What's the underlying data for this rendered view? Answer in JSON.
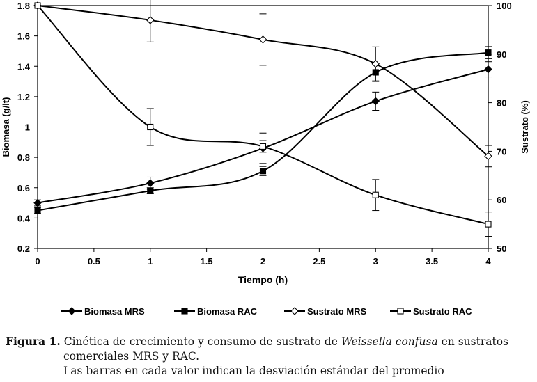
{
  "chart_data": {
    "type": "line",
    "title": "",
    "xlabel": "Tiempo (h)",
    "ylabel": "Biomasa (g/lt)",
    "y2label": "Sustrato (%)",
    "xlim": [
      0,
      4
    ],
    "ylim": [
      0.2,
      1.8
    ],
    "y2lim": [
      50,
      100
    ],
    "x_ticks": [
      "0",
      "0.5",
      "1",
      "1.5",
      "2",
      "2.5",
      "3",
      "3.5",
      "4"
    ],
    "y_ticks": [
      "0.2",
      "0.4",
      "0.6",
      "0.8",
      "1",
      "1.2",
      "1.4",
      "1.6",
      "1.8"
    ],
    "y2_ticks": [
      "50",
      "60",
      "70",
      "80",
      "90",
      "100"
    ],
    "grid": false,
    "legend_position": "bottom",
    "x": [
      0,
      1,
      2,
      3,
      4
    ],
    "series": [
      {
        "name": "Biomasa MRS",
        "axis": "left",
        "marker": "diamond-filled",
        "values": [
          0.5,
          0.63,
          0.86,
          1.17,
          1.38
        ],
        "errors": [
          0.02,
          0.04,
          0.1,
          0.06,
          0.05
        ]
      },
      {
        "name": "Biomasa RAC",
        "axis": "left",
        "marker": "square-filled",
        "values": [
          0.45,
          0.58,
          0.71,
          1.36,
          1.49
        ],
        "errors": [
          0.02,
          0.02,
          0.03,
          0.06,
          0.04
        ]
      },
      {
        "name": "Sustrato MRS",
        "axis": "right",
        "marker": "diamond-open",
        "values": [
          100,
          97,
          93,
          88,
          69
        ],
        "errors": [
          0,
          4.5,
          5.3,
          3.5,
          2.2
        ]
      },
      {
        "name": "Sustrato RAC",
        "axis": "right",
        "marker": "square-open",
        "values": [
          100,
          75,
          71,
          61,
          55
        ],
        "errors": [
          0,
          3.8,
          1.2,
          3.2,
          2.5
        ]
      }
    ]
  },
  "caption": {
    "label": "Figura 1.",
    "text_before": " Cinética de crecimiento y consumo de sustrato de ",
    "species": "Weissella confusa",
    "text_after": " en sustratos",
    "line2": "comerciales MRS y RAC.",
    "line3": "Las barras en cada valor indican la desviación estándar del promedio"
  }
}
